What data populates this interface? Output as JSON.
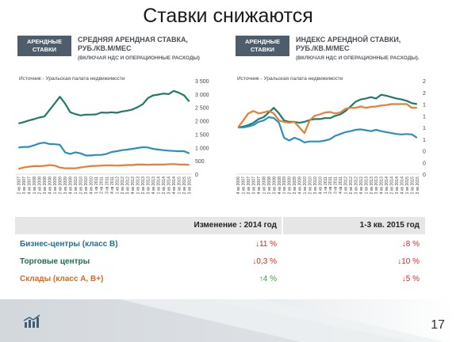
{
  "page": {
    "title": "Ставки снижаются",
    "page_number": "17"
  },
  "left_chart": {
    "badge": [
      "АРЕНДНЫЕ",
      "СТАВКИ"
    ],
    "heading": [
      "СРЕДНЯЯ АРЕНДНАЯ СТАВКА,",
      "РУБ./КВ.М/МЕС"
    ],
    "subheading": "(ВКЛЮЧАЯ НДС И ОПЕРАЦИОННЫЕ РАСХОДЫ)",
    "source": "Источник - Уральская палата недвижимости"
  },
  "right_chart": {
    "badge": [
      "АРЕНДНЫЕ",
      "СТАВКИ"
    ],
    "heading": [
      "ИНДЕКС АРЕНДНОЙ СТАВКИ,",
      "РУБ./КВ.М/МЕС"
    ],
    "subheading": "(ВКЛЮЧАЯ НДС И ОПЕРАЦИОННЫЕ РАСХОДЫ).",
    "source": "Источник - Уральская палата недвижимости"
  },
  "chart_data": [
    {
      "type": "line",
      "ylim": [
        0,
        3500
      ],
      "yticks": [
        "0",
        "500",
        "1 000",
        "1 500",
        "2 000",
        "2 500",
        "3 000",
        "3 500"
      ],
      "categories": [
        "2 кв 2007",
        "3 кв 2007",
        "4 кв 2007",
        "1 кв 2008",
        "2 кв 2008",
        "3 кв 2008",
        "4 кв 2008",
        "1 кв 2009",
        "2 кв 2009",
        "3 кв 2009",
        "4 кв 2009",
        "1 кв 2010",
        "2 кв 2010",
        "3 кв 2010",
        "4 кв 2010",
        "1 кв 2011",
        "2 кв 2011",
        "3 кв 2011",
        "4 кв 2011",
        "1 кв 2012",
        "2 кв 2012",
        "3 кв 2012",
        "4 кв 2012",
        "1 кв 2013",
        "2 кв 2013",
        "3 кв 2013",
        "4 кв 2013",
        "1 кв 2014",
        "2 кв 2014",
        "3 кв 2014",
        "4 кв 2014",
        "1 кв 2015",
        "2 кв 2015",
        "3 кв 2015"
      ],
      "series": [
        {
          "color": "#1e7a6a",
          "values": [
            1900,
            1950,
            2010,
            2060,
            2120,
            2160,
            2400,
            2650,
            2900,
            2650,
            2320,
            2250,
            2200,
            2230,
            2230,
            2240,
            2310,
            2300,
            2320,
            2300,
            2350,
            2380,
            2420,
            2510,
            2620,
            2850,
            2950,
            2980,
            3020,
            3000,
            3120,
            3050,
            2950,
            2720
          ]
        },
        {
          "color": "#2a8fbe",
          "values": [
            1000,
            1020,
            1020,
            1080,
            1150,
            1180,
            1130,
            1120,
            1100,
            820,
            760,
            820,
            780,
            700,
            700,
            720,
            720,
            760,
            830,
            860,
            900,
            920,
            950,
            980,
            1010,
            1000,
            950,
            920,
            900,
            880,
            870,
            860,
            860,
            780
          ]
        },
        {
          "color": "#e87d33",
          "values": [
            200,
            250,
            280,
            300,
            300,
            310,
            340,
            320,
            250,
            220,
            220,
            220,
            250,
            280,
            300,
            310,
            320,
            330,
            330,
            320,
            330,
            340,
            340,
            360,
            360,
            350,
            360,
            360,
            360,
            370,
            380,
            360,
            360,
            350
          ]
        }
      ]
    },
    {
      "type": "line",
      "ylim": [
        0,
        2
      ],
      "yticks": [
        "0",
        "0",
        "0",
        "1",
        "1",
        "1",
        "1",
        "2",
        "2"
      ],
      "categories": [
        "4 кв 2006",
        "1 кв 2007",
        "2 кв 2007",
        "3 кв 2007",
        "4 кв 2007",
        "1 кв 2008",
        "2 кв 2008",
        "3 кв 2008",
        "4 кв 2008",
        "1 кв 2009",
        "2 кв 2009",
        "3 кв 2009",
        "4 кв 2009",
        "1 кв 2010",
        "2 кв 2010",
        "3 кв 2010",
        "4 кв 2010",
        "1 кв 2011",
        "2 кв 2011",
        "3 кв 2011",
        "4 кв 2011",
        "1 кв 2012",
        "2 кв 2012",
        "3 кв 2012",
        "4 кв 2012",
        "1 кв 2013",
        "2 кв 2013",
        "3 кв 2013",
        "4 кв 2013",
        "1 кв 2014",
        "2 кв 2014",
        "3 кв 2014",
        "4 кв 2014",
        "1 кв 2015",
        "2 кв 2015",
        "3 кв 2015"
      ],
      "series": [
        {
          "color": "#1e7a6a",
          "values": [
            1.0,
            1.02,
            1.05,
            1.1,
            1.18,
            1.22,
            1.32,
            1.42,
            1.3,
            1.15,
            1.12,
            1.12,
            1.1,
            1.12,
            1.16,
            1.18,
            1.18,
            1.2,
            1.2,
            1.25,
            1.28,
            1.35,
            1.45,
            1.55,
            1.6,
            1.62,
            1.65,
            1.62,
            1.7,
            1.68,
            1.65,
            1.62,
            1.6,
            1.57,
            1.52,
            1.5
          ]
        },
        {
          "color": "#2a8fbe",
          "values": [
            1.0,
            1.0,
            1.02,
            1.05,
            1.12,
            1.15,
            1.22,
            1.2,
            1.1,
            0.78,
            0.72,
            0.78,
            0.74,
            0.68,
            0.7,
            0.7,
            0.7,
            0.72,
            0.75,
            0.82,
            0.86,
            0.9,
            0.92,
            0.95,
            0.96,
            0.94,
            0.92,
            0.95,
            0.92,
            0.9,
            0.88,
            0.86,
            0.85,
            0.86,
            0.85,
            0.78
          ]
        },
        {
          "color": "#e87d33",
          "values": [
            1.0,
            1.15,
            1.3,
            1.35,
            1.3,
            1.32,
            1.35,
            1.3,
            1.15,
            1.12,
            1.1,
            1.12,
            1.0,
            0.88,
            1.15,
            1.25,
            1.28,
            1.32,
            1.33,
            1.3,
            1.32,
            1.4,
            1.42,
            1.42,
            1.45,
            1.42,
            1.44,
            1.45,
            1.47,
            1.48,
            1.5,
            1.5,
            1.5,
            1.5,
            1.42,
            1.42
          ]
        }
      ]
    }
  ],
  "table": {
    "header": {
      "col1": "Изменение :   2014 год",
      "col2": "1-3 кв. 2015 год"
    },
    "rows": [
      {
        "label": "Бизнес-центры (класс В)",
        "label_color": "#1f6f8f",
        "v1": "11 %",
        "v1_dir": "down",
        "v2": "8 %",
        "v2_dir": "down"
      },
      {
        "label": "Торговые центры",
        "label_color": "#1e6b55",
        "v1": "0,3 %",
        "v1_dir": "down",
        "v2": "10 %",
        "v2_dir": "down"
      },
      {
        "label": "Склады (класс А, В+)",
        "label_color": "#d9691d",
        "v1": "4 %",
        "v1_dir": "up",
        "v2": "5 %",
        "v2_dir": "down"
      }
    ]
  },
  "icons": {
    "down": "↓",
    "up": "↑",
    "logo": "chart-logo-icon"
  }
}
